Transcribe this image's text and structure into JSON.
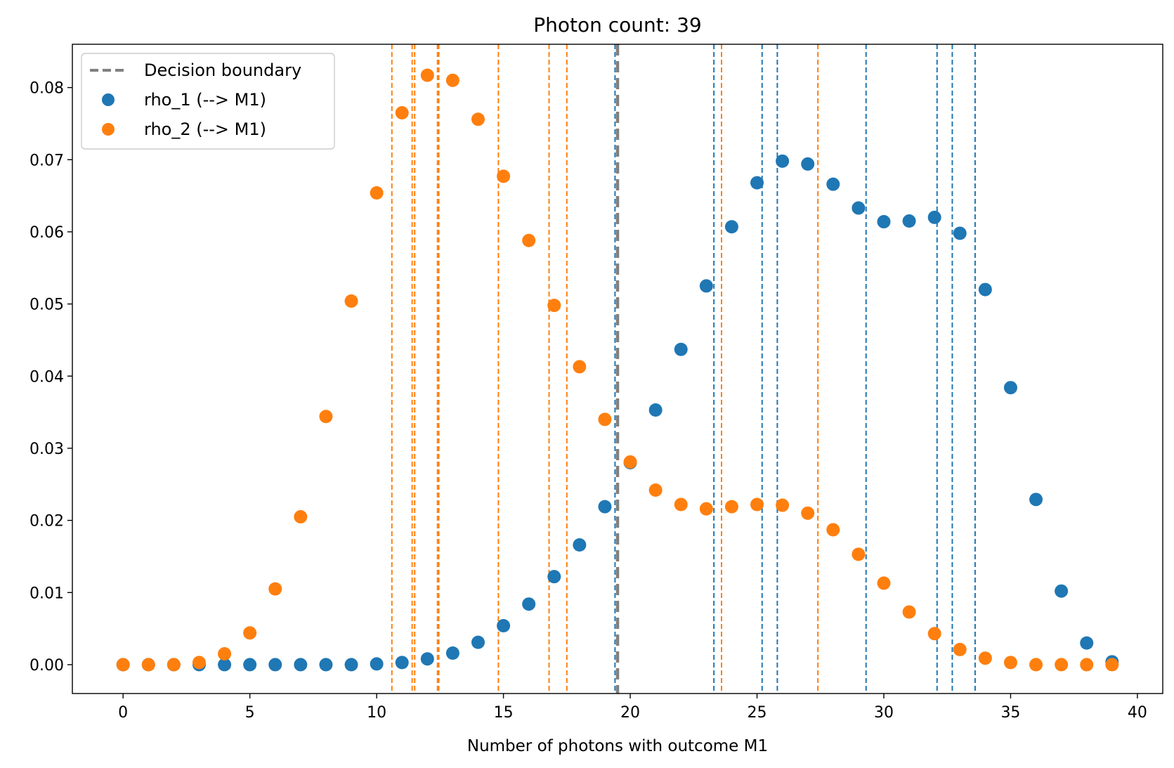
{
  "chart_data": {
    "type": "scatter",
    "title": "Photon count: 39",
    "xlabel": "Number of photons with outcome M1",
    "ylabel": "",
    "xlim": [
      -2,
      41
    ],
    "ylim": [
      -0.004,
      0.086
    ],
    "xticks": [
      0,
      5,
      10,
      15,
      20,
      25,
      30,
      35,
      40
    ],
    "xtick_labels": [
      "0",
      "5",
      "10",
      "15",
      "20",
      "25",
      "30",
      "35",
      "40"
    ],
    "yticks": [
      0.0,
      0.01,
      0.02,
      0.03,
      0.04,
      0.05,
      0.06,
      0.07,
      0.08
    ],
    "ytick_labels": [
      "0.00",
      "0.01",
      "0.02",
      "0.03",
      "0.04",
      "0.05",
      "0.06",
      "0.07",
      "0.08"
    ],
    "grid": false,
    "legend_position": "top-left",
    "x": [
      0,
      1,
      2,
      3,
      4,
      5,
      6,
      7,
      8,
      9,
      10,
      11,
      12,
      13,
      14,
      15,
      16,
      17,
      18,
      19,
      20,
      21,
      22,
      23,
      24,
      25,
      26,
      27,
      28,
      29,
      30,
      31,
      32,
      33,
      34,
      35,
      36,
      37,
      38,
      39
    ],
    "series": [
      {
        "name": "rho_1 (--> M1)",
        "color": "#1f77b4",
        "marker": "circle",
        "values": [
          0.0,
          0.0,
          0.0,
          0.0,
          0.0,
          0.0,
          0.0,
          0.0,
          0.0,
          0.0,
          0.0001,
          0.0003,
          0.0008,
          0.0016,
          0.0031,
          0.0054,
          0.0084,
          0.0122,
          0.0166,
          0.0219,
          0.028,
          0.0353,
          0.0437,
          0.0525,
          0.0607,
          0.0668,
          0.0698,
          0.0694,
          0.0666,
          0.0633,
          0.0614,
          0.0615,
          0.062,
          0.0598,
          0.052,
          0.0384,
          0.0229,
          0.0102,
          0.003,
          0.0004
        ]
      },
      {
        "name": "rho_2 (--> M1)",
        "color": "#ff7f0e",
        "marker": "circle",
        "values": [
          0.0,
          0.0,
          0.0,
          0.0003,
          0.0015,
          0.0044,
          0.0105,
          0.0205,
          0.0344,
          0.0504,
          0.0654,
          0.0765,
          0.0817,
          0.081,
          0.0756,
          0.0677,
          0.0588,
          0.0498,
          0.0413,
          0.034,
          0.0281,
          0.0242,
          0.0222,
          0.0216,
          0.0219,
          0.0222,
          0.0221,
          0.021,
          0.0187,
          0.0153,
          0.0113,
          0.0073,
          0.0043,
          0.0021,
          0.0009,
          0.0003,
          0.0,
          0.0,
          0.0,
          0.0
        ]
      }
    ],
    "decision_boundary": {
      "name": "Decision boundary",
      "x": 19.5,
      "color": "#808080",
      "style": "dashed"
    },
    "vlines": [
      {
        "color": "#ff7f0e",
        "style": "dashed",
        "x": [
          10.6,
          11.4,
          11.5,
          12.4,
          12.45,
          14.8,
          16.8,
          17.5,
          23.6,
          27.4
        ]
      },
      {
        "color": "#1f77b4",
        "style": "dashed",
        "x": [
          19.4,
          23.3,
          25.2,
          25.8,
          29.3,
          32.1,
          32.7,
          33.6
        ]
      }
    ]
  }
}
